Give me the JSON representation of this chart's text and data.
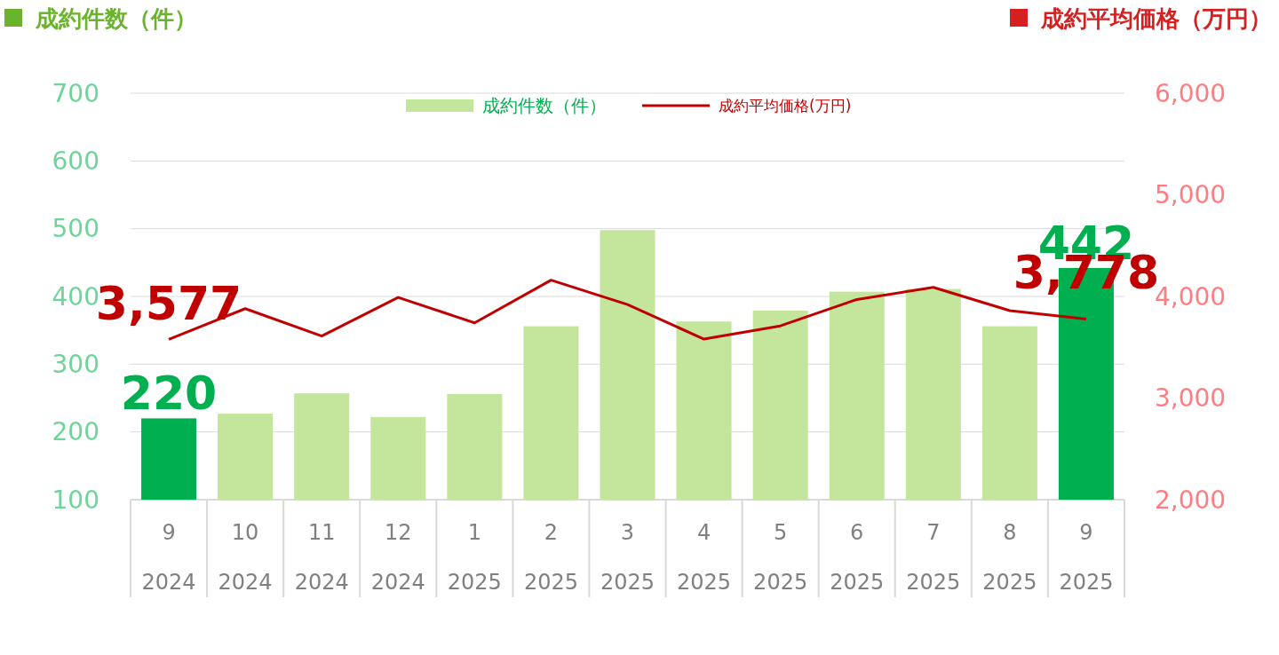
{
  "chart_data": {
    "type": "bar",
    "ylabel": "成約件数（件）",
    "y2label": "成約平均価格（万円）",
    "categories": [
      "9\n2024",
      "10\n2024",
      "11\n2024",
      "12\n2024",
      "1\n2025",
      "2\n2025",
      "3\n2025",
      "4\n2025",
      "5\n2025",
      "6\n2025",
      "7\n2025",
      "8\n2025",
      "9\n2025"
    ],
    "series": [
      {
        "name": "成約件数（件）",
        "color": "#c3e59c",
        "colors": [
          "#00b050",
          "#c3e59c",
          "#c3e59c",
          "#c3e59c",
          "#c3e59c",
          "#c3e59c",
          "#c3e59c",
          "#c3e59c",
          "#c3e59c",
          "#c3e59c",
          "#c3e59c",
          "#c3e59c",
          "#00b050"
        ],
        "values": [
          220,
          227,
          257,
          222,
          256,
          356,
          498,
          363,
          379,
          407,
          411,
          356,
          442
        ],
        "value_labels": [
          "220",
          null,
          null,
          null,
          null,
          null,
          null,
          null,
          null,
          null,
          null,
          null,
          "442"
        ]
      },
      {
        "name": "成約平均価格(万円)",
        "type": "line",
        "axis": "y2",
        "color": "#c00000",
        "values": [
          3577,
          3880,
          3610,
          3990,
          3740,
          4160,
          3920,
          3580,
          3710,
          3970,
          4090,
          3860,
          3778
        ],
        "value_labels": [
          "3,577",
          null,
          null,
          null,
          null,
          null,
          null,
          null,
          null,
          null,
          null,
          null,
          "3,778"
        ]
      }
    ],
    "ylim": [
      100,
      700
    ],
    "yticks": [
      100,
      200,
      300,
      400,
      500,
      600,
      700
    ],
    "y2lim": [
      2000,
      6000
    ],
    "y2ticks": [
      {
        "value": 2000,
        "label": "2,000"
      },
      {
        "value": 3000,
        "label": "3,000"
      },
      {
        "value": 4000,
        "label": "4,000"
      },
      {
        "value": 5000,
        "label": "5,000"
      },
      {
        "value": 6000,
        "label": "6,000"
      }
    ],
    "grid": "y",
    "legend": "top",
    "line_style": "solid",
    "marker": "none"
  }
}
